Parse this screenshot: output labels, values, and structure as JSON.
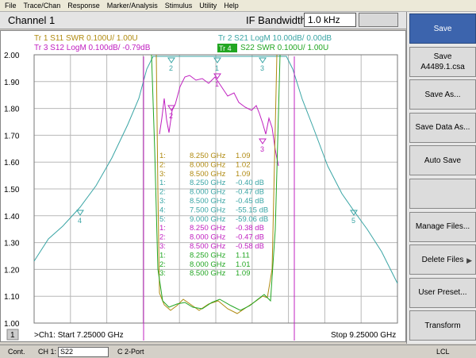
{
  "menu": [
    "File",
    "Trace/Chan",
    "Response",
    "Marker/Analysis",
    "Stimulus",
    "Utility",
    "Help"
  ],
  "toolbar": {
    "title": "Channel 1",
    "ifbw_label": "IF Bandwidth",
    "ifbw_value": "1.0 kHz"
  },
  "traces": {
    "tr1": "Tr  1  S11 SWR 0.100U/  1.00U",
    "tr2": "Tr  2  S21 LogM 10.00dB/  0.00dB",
    "tr3": "Tr  3  S12 LogM 0.100dB/  -0.79dB",
    "tr4_badge": "Tr  4",
    "tr4": "S22  SWR 0.100U/  1.00U"
  },
  "colors": {
    "tr1": "#b08a10",
    "tr2": "#3aa5a5",
    "tr3": "#c020c0",
    "tr4": "#22a622",
    "grid": "#b8b8b8",
    "active_key": "#3c64ad"
  },
  "y_ticks": [
    "2.00",
    "1.90",
    "1.80",
    "1.70",
    "1.60",
    "1.50",
    "1.40",
    "1.30",
    "1.20",
    "1.10",
    "1.00"
  ],
  "marker_table": [
    {
      "n": "1:",
      "f": "8.250 GHz",
      "v": "1.09",
      "c": "tr1"
    },
    {
      "n": "2:",
      "f": "8.000 GHz",
      "v": "1.02",
      "c": "tr1"
    },
    {
      "n": "3:",
      "f": "8.500 GHz",
      "v": "1.09",
      "c": "tr1"
    },
    {
      "n": "1:",
      "f": "8.250 GHz",
      "v": "-0.40 dB",
      "c": "tr2"
    },
    {
      "n": "2:",
      "f": "8.000 GHz",
      "v": "-0.47 dB",
      "c": "tr2"
    },
    {
      "n": "3:",
      "f": "8.500 GHz",
      "v": "-0.45 dB",
      "c": "tr2"
    },
    {
      "n": "4:",
      "f": "7.500 GHz",
      "v": "-55.15 dB",
      "c": "tr2"
    },
    {
      "n": "5:",
      "f": "9.000 GHz",
      "v": "-59.06 dB",
      "c": "tr2"
    },
    {
      "n": "1:",
      "f": "8.250 GHz",
      "v": "-0.38 dB",
      "c": "tr3"
    },
    {
      "n": "2:",
      "f": "8.000 GHz",
      "v": "-0.47 dB",
      "c": "tr3"
    },
    {
      "n": "3:",
      "f": "8.500 GHz",
      "v": "-0.58 dB",
      "c": "tr3"
    },
    {
      "n": "1:",
      "f": "8.250 GHz",
      "v": "1.11",
      "c": "tr4"
    },
    {
      "n": "2:",
      "f": "8.000 GHz",
      "v": "1.01",
      "c": "tr4"
    },
    {
      "n": "3:",
      "f": "8.500 GHz",
      "v": "1.09",
      "c": "tr4"
    }
  ],
  "bottom": {
    "badge": "1",
    "start": ">Ch1: Start  7.25000 GHz",
    "stop": "Stop  9.25000 GHz"
  },
  "softkeys": [
    {
      "label": "Save",
      "active": true
    },
    {
      "label": "Save\nA4489.1.csa"
    },
    {
      "label": "Save As..."
    },
    {
      "label": "Save Data As..."
    },
    {
      "label": "Auto Save"
    },
    {
      "label": ""
    },
    {
      "label": "Manage Files..."
    },
    {
      "label": "Delete Files",
      "arrow": true
    },
    {
      "label": "User Preset..."
    },
    {
      "label": "Transform"
    }
  ],
  "status": {
    "cont": "Cont.",
    "ch": "CH 1:",
    "param": "S22",
    "port": "C  2-Port",
    "lcl": "LCL"
  }
}
